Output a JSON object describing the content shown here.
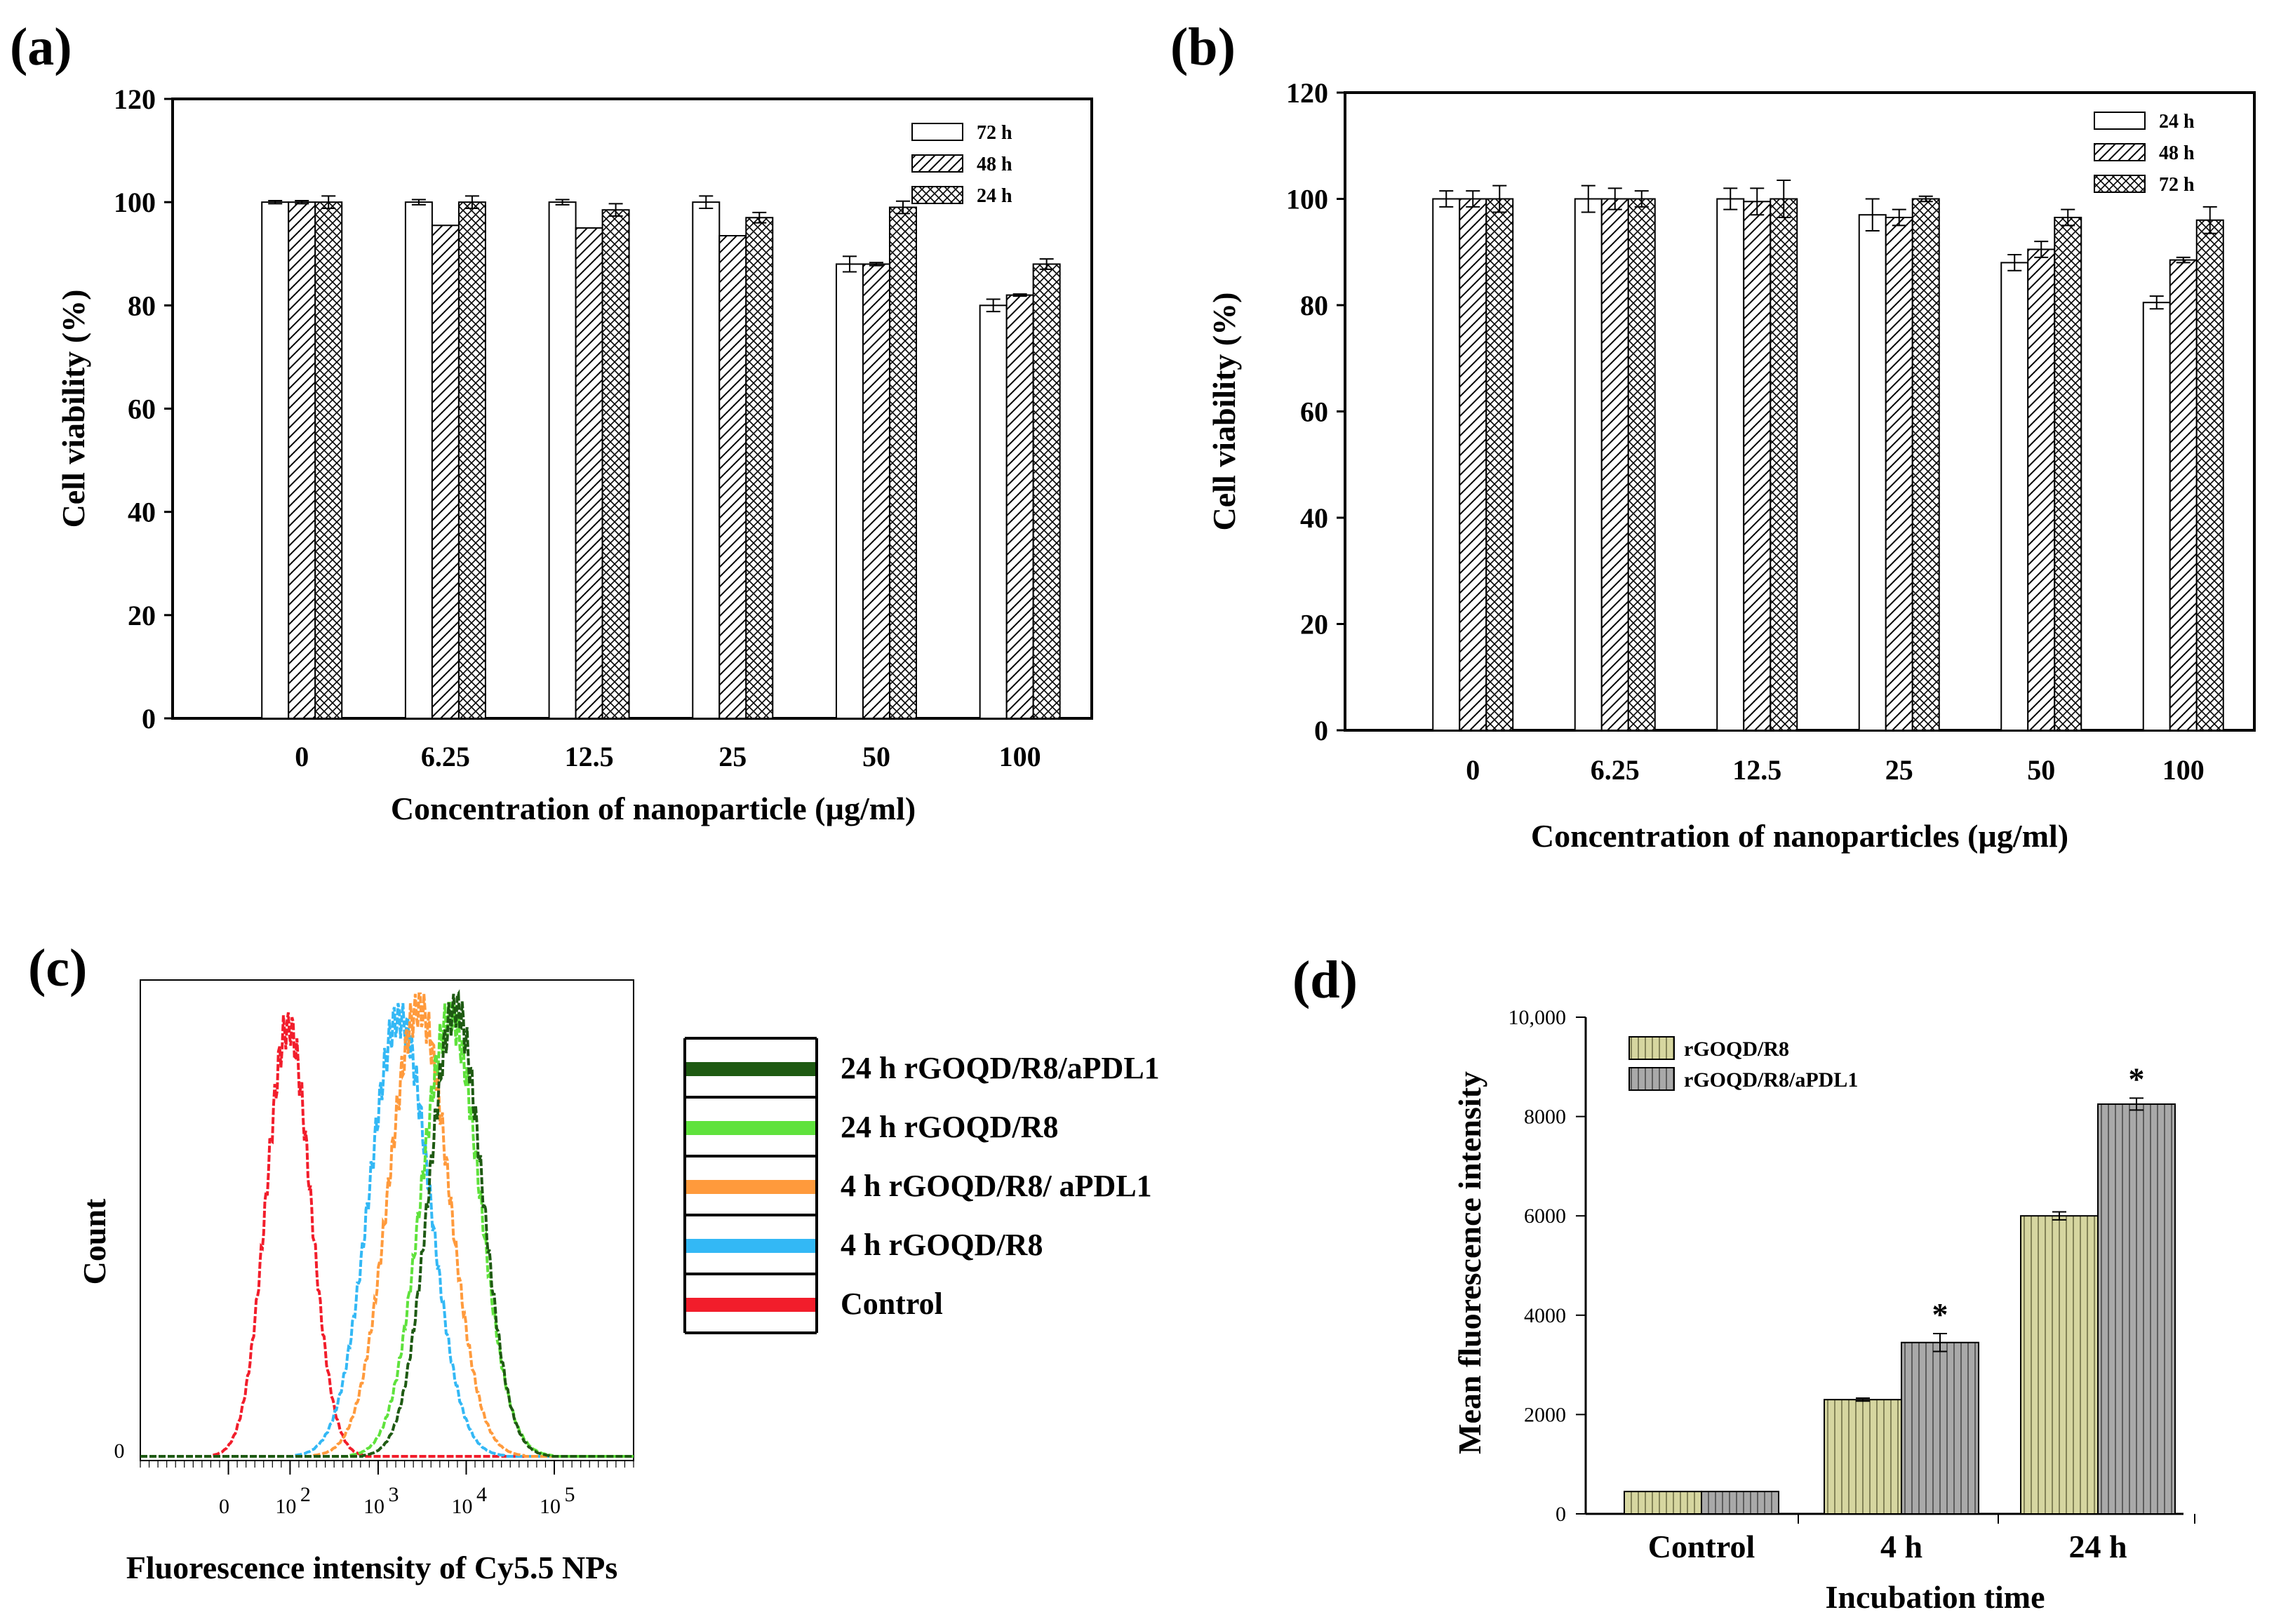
{
  "panels": {
    "a": "(a)",
    "b": "(b)",
    "c": "(c)",
    "d": "(d)"
  },
  "chart_data": [
    {
      "id": "a",
      "type": "bar",
      "title": "",
      "xlabel": "Concentration of nanoparticle (µg/ml)",
      "ylabel": "Cell viability (%)",
      "ylim": [
        0,
        120
      ],
      "yticks": [
        "0",
        "20",
        "40",
        "60",
        "80",
        "100",
        "120"
      ],
      "categories": [
        "0",
        "6.25",
        "12.5",
        "25",
        "50",
        "100"
      ],
      "legend_position": "top-right",
      "series": [
        {
          "name": "72 h",
          "pattern": "empty",
          "values": [
            100,
            100,
            100,
            100,
            88,
            80
          ],
          "errors": [
            0.3,
            0.5,
            0.5,
            1.2,
            1.5,
            1.2
          ]
        },
        {
          "name": "48 h",
          "pattern": "hatch",
          "values": [
            100,
            95.5,
            95,
            93.5,
            88,
            82
          ],
          "errors": [
            0.3,
            0,
            0,
            0,
            0.3,
            0.2
          ]
        },
        {
          "name": "24 h",
          "pattern": "cross",
          "values": [
            100,
            100,
            98.5,
            97,
            99,
            88
          ],
          "errors": [
            1.2,
            1.2,
            1.2,
            1.0,
            1.2,
            1.0
          ]
        }
      ]
    },
    {
      "id": "b",
      "type": "bar",
      "title": "",
      "xlabel": "Concentration of nanoparticles (µg/ml)",
      "ylabel": "Cell viability (%)",
      "ylim": [
        0,
        120
      ],
      "yticks": [
        "0",
        "20",
        "40",
        "60",
        "80",
        "100",
        "120"
      ],
      "categories": [
        "0",
        "6.25",
        "12.5",
        "25",
        "50",
        "100"
      ],
      "legend_position": "top-right",
      "series": [
        {
          "name": "24 h",
          "pattern": "empty",
          "values": [
            100,
            100,
            100,
            97,
            88,
            80.5
          ],
          "errors": [
            1.5,
            2.5,
            2.0,
            3.0,
            1.5,
            1.2
          ]
        },
        {
          "name": "48 h",
          "pattern": "hatch",
          "values": [
            100,
            100,
            99.5,
            96.5,
            90.5,
            88.5
          ],
          "errors": [
            1.5,
            2.0,
            2.5,
            1.5,
            1.5,
            0.5
          ]
        },
        {
          "name": "72 h",
          "pattern": "cross",
          "values": [
            100,
            100,
            100,
            100,
            96.5,
            96
          ],
          "errors": [
            2.5,
            1.5,
            3.5,
            0.5,
            1.5,
            2.5
          ]
        }
      ]
    },
    {
      "id": "c",
      "type": "line",
      "title": "",
      "xlabel": "Fluorescence intensity of Cy5.5 NPs",
      "ylabel": "Count",
      "x_scale": "log",
      "xticks": [
        {
          "base": "0",
          "exp": ""
        },
        {
          "base": "10",
          "exp": "2"
        },
        {
          "base": "10",
          "exp": "3"
        },
        {
          "base": "10",
          "exp": "4"
        },
        {
          "base": "10",
          "exp": "5"
        }
      ],
      "y_tick": "0",
      "legend_position": "right",
      "series": [
        {
          "name": "24 h rGOQD/R8/aPDL1",
          "color": "#1e5a12",
          "peak_log10": 3.88,
          "width": 0.3,
          "height": 1.0
        },
        {
          "name": "24 h rGOQD/R8",
          "color": "#5fe23c",
          "peak_log10": 3.82,
          "width": 0.33,
          "height": 0.98
        },
        {
          "name": "4 h rGOQD/R8/ aPDL1",
          "color": "#ff9a3c",
          "peak_log10": 3.46,
          "width": 0.34,
          "height": 1.0
        },
        {
          "name": "4 h rGOQD/R8",
          "color": "#33b8f5",
          "peak_log10": 3.24,
          "width": 0.34,
          "height": 0.98
        },
        {
          "name": "Control",
          "color": "#f21d2b",
          "peak_log10": 1.98,
          "width": 0.25,
          "height": 0.96
        }
      ]
    },
    {
      "id": "d",
      "type": "bar",
      "title": "",
      "xlabel": "Incubation time",
      "ylabel": "Mean fluorescence intensity",
      "ylim": [
        0,
        10000
      ],
      "yticks": [
        "0",
        "2000",
        "4000",
        "6000",
        "8000",
        "10,000"
      ],
      "categories": [
        "Control",
        "4 h",
        "24 h"
      ],
      "legend_position": "top-left",
      "significance": [
        "",
        "*",
        "*"
      ],
      "series": [
        {
          "name": "rGOQD/R8",
          "color": "#d6d6a0",
          "values": [
            450,
            2300,
            6000
          ],
          "errors": [
            0,
            30,
            80
          ]
        },
        {
          "name": "rGOQD/R8/aPDL1",
          "color": "#a9a9a9",
          "values": [
            450,
            3450,
            8250
          ],
          "errors": [
            0,
            180,
            120
          ]
        }
      ]
    }
  ]
}
